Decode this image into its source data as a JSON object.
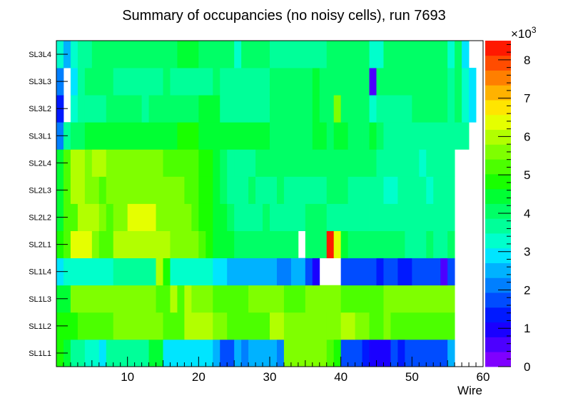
{
  "chart_data": {
    "type": "heatmap",
    "title": "Summary of occupancies (no noisy cells), run 7693",
    "xlabel": "Wire",
    "ylabel": "",
    "x_range": [
      0,
      60
    ],
    "x_ticks": [
      10,
      20,
      30,
      40,
      50,
      60
    ],
    "z_range": [
      0,
      8.5
    ],
    "z_multiplier": "×10",
    "z_multiplier_exp": "3",
    "z_ticks": [
      0,
      1,
      2,
      3,
      4,
      5,
      6,
      7,
      8
    ],
    "layers": [
      "SL1L1",
      "SL1L2",
      "SL1L3",
      "SL1L4",
      "SL2L1",
      "SL2L2",
      "SL2L3",
      "SL2L4",
      "SL3L1",
      "SL3L2",
      "SL3L3",
      "SL3L4"
    ],
    "palette": [
      "#7f00ff",
      "#4c00ff",
      "#1a00ff",
      "#0019ff",
      "#004cff",
      "#007fff",
      "#00b2ff",
      "#00e5ff",
      "#00ffcc",
      "#00ff99",
      "#00ff66",
      "#00ff33",
      "#19ff00",
      "#4cff00",
      "#7fff00",
      "#b2ff00",
      "#e5ff00",
      "#ffe500",
      "#ffb200",
      "#ff7f00",
      "#ff4c00",
      "#ff1900"
    ],
    "rows": [
      {
        "layer": "SL1L1",
        "segments": [
          [
            0,
            1,
            4.7
          ],
          [
            1,
            2,
            4.3
          ],
          [
            2,
            4,
            3.7
          ],
          [
            4,
            6,
            3.4
          ],
          [
            6,
            7,
            2.9
          ],
          [
            7,
            13,
            3.5
          ],
          [
            13,
            15,
            4.4
          ],
          [
            15,
            22,
            2.9
          ],
          [
            22,
            23,
            2.4
          ],
          [
            23,
            25,
            1.9
          ],
          [
            25,
            26,
            2.4
          ],
          [
            26,
            27,
            2.0
          ],
          [
            27,
            31,
            2.5
          ],
          [
            31,
            32,
            2.2
          ],
          [
            32,
            38,
            5.6
          ],
          [
            38,
            39,
            5.4
          ],
          [
            39,
            40,
            4.7
          ],
          [
            40,
            43,
            1.9
          ],
          [
            43,
            44,
            1.5
          ],
          [
            44,
            47,
            1.0
          ],
          [
            47,
            48,
            1.9
          ],
          [
            48,
            49,
            1.5
          ],
          [
            49,
            55,
            1.9
          ],
          [
            55,
            56,
            2.6
          ]
        ]
      },
      {
        "layer": "SL1L2",
        "segments": [
          [
            0,
            3,
            4.9
          ],
          [
            3,
            8,
            5.4
          ],
          [
            8,
            15,
            5.6
          ],
          [
            15,
            18,
            5.4
          ],
          [
            18,
            22,
            5.9
          ],
          [
            22,
            24,
            5.6
          ],
          [
            24,
            28,
            5.2
          ],
          [
            28,
            30,
            5.4
          ],
          [
            30,
            32,
            6.0
          ],
          [
            32,
            38,
            5.6
          ],
          [
            38,
            40,
            5.5
          ],
          [
            40,
            41,
            5.9
          ],
          [
            41,
            42,
            6.1
          ],
          [
            42,
            44,
            5.5
          ],
          [
            44,
            46,
            5.3
          ],
          [
            46,
            47,
            5.5
          ],
          [
            47,
            56,
            5.3
          ]
        ]
      },
      {
        "layer": "SL1L3",
        "segments": [
          [
            0,
            2,
            4.5
          ],
          [
            2,
            14,
            5.5
          ],
          [
            14,
            16,
            5.4
          ],
          [
            16,
            17,
            5.8
          ],
          [
            17,
            18,
            5.4
          ],
          [
            18,
            19,
            5.8
          ],
          [
            19,
            22,
            5.5
          ],
          [
            22,
            27,
            5.1
          ],
          [
            27,
            32,
            5.6
          ],
          [
            32,
            35,
            5.2
          ],
          [
            35,
            40,
            5.6
          ],
          [
            40,
            42,
            5.4
          ],
          [
            42,
            44,
            5.1
          ],
          [
            44,
            46,
            5.4
          ],
          [
            46,
            56,
            5.5
          ]
        ]
      },
      {
        "layer": "SL1L4",
        "segments": [
          [
            0,
            1,
            3.0
          ],
          [
            1,
            8,
            3.3
          ],
          [
            8,
            14,
            3.6
          ],
          [
            14,
            15,
            6.0
          ],
          [
            15,
            16,
            4.8
          ],
          [
            16,
            22,
            3.3
          ],
          [
            22,
            24,
            2.9
          ],
          [
            24,
            31,
            2.4
          ],
          [
            31,
            33,
            2.0
          ],
          [
            33,
            35,
            2.4
          ],
          [
            35,
            36,
            1.9
          ],
          [
            36,
            37,
            0.8
          ],
          [
            40,
            45,
            1.9
          ],
          [
            45,
            46,
            1.5
          ],
          [
            46,
            48,
            1.9
          ],
          [
            48,
            50,
            1.4
          ],
          [
            50,
            54,
            1.9
          ],
          [
            54,
            55,
            0.5
          ],
          [
            55,
            56,
            1.7
          ]
        ]
      },
      {
        "layer": "SL2L1",
        "segments": [
          [
            0,
            1,
            4.7
          ],
          [
            1,
            2,
            5.3
          ],
          [
            2,
            5,
            6.3
          ],
          [
            5,
            6,
            5.6
          ],
          [
            6,
            7,
            5.4
          ],
          [
            7,
            8,
            5.1
          ],
          [
            8,
            16,
            6.0
          ],
          [
            16,
            20,
            5.6
          ],
          [
            20,
            21,
            5.2
          ],
          [
            21,
            22,
            4.9
          ],
          [
            22,
            25,
            4.4
          ],
          [
            25,
            34,
            4.0
          ],
          [
            35,
            38,
            4.0
          ],
          [
            38,
            39,
            8.2
          ],
          [
            39,
            40,
            6.5
          ],
          [
            40,
            41,
            4.4
          ],
          [
            41,
            49,
            4.0
          ],
          [
            49,
            52,
            3.6
          ],
          [
            52,
            53,
            4.0
          ],
          [
            53,
            55,
            3.6
          ],
          [
            55,
            56,
            4.0
          ]
        ]
      },
      {
        "layer": "SL2L2",
        "segments": [
          [
            0,
            1,
            4.6
          ],
          [
            1,
            3,
            5.4
          ],
          [
            3,
            6,
            6.0
          ],
          [
            6,
            7,
            5.7
          ],
          [
            7,
            8,
            5.4
          ],
          [
            8,
            10,
            5.6
          ],
          [
            10,
            14,
            6.2
          ],
          [
            14,
            19,
            5.6
          ],
          [
            19,
            20,
            5.3
          ],
          [
            20,
            22,
            4.9
          ],
          [
            22,
            23,
            4.6
          ],
          [
            23,
            24,
            4.3
          ],
          [
            24,
            25,
            4.0
          ],
          [
            25,
            29,
            3.7
          ],
          [
            29,
            30,
            4.0
          ],
          [
            30,
            35,
            3.7
          ],
          [
            35,
            38,
            4.0
          ],
          [
            38,
            44,
            3.8
          ],
          [
            44,
            56,
            3.5
          ]
        ]
      },
      {
        "layer": "SL2L3",
        "segments": [
          [
            0,
            1,
            4.6
          ],
          [
            1,
            2,
            5.4
          ],
          [
            2,
            4,
            5.8
          ],
          [
            4,
            6,
            5.5
          ],
          [
            6,
            7,
            5.1
          ],
          [
            7,
            8,
            5.5
          ],
          [
            8,
            18,
            5.6
          ],
          [
            18,
            20,
            5.2
          ],
          [
            20,
            22,
            4.9
          ],
          [
            22,
            23,
            4.6
          ],
          [
            23,
            24,
            4.2
          ],
          [
            24,
            27,
            3.8
          ],
          [
            27,
            28,
            4.2
          ],
          [
            28,
            31,
            3.8
          ],
          [
            31,
            32,
            4.2
          ],
          [
            32,
            38,
            3.7
          ],
          [
            38,
            41,
            4.0
          ],
          [
            41,
            46,
            3.7
          ],
          [
            46,
            48,
            3.4
          ],
          [
            48,
            52,
            3.7
          ],
          [
            52,
            53,
            3.4
          ],
          [
            53,
            56,
            3.6
          ]
        ]
      },
      {
        "layer": "SL2L4",
        "segments": [
          [
            0,
            1,
            4.5
          ],
          [
            1,
            2,
            5.4
          ],
          [
            2,
            4,
            6.1
          ],
          [
            4,
            5,
            5.6
          ],
          [
            5,
            7,
            5.8
          ],
          [
            7,
            10,
            5.5
          ],
          [
            10,
            15,
            5.7
          ],
          [
            15,
            20,
            5.3
          ],
          [
            20,
            22,
            4.9
          ],
          [
            22,
            23,
            4.6
          ],
          [
            23,
            24,
            4.2
          ],
          [
            24,
            25,
            3.8
          ],
          [
            25,
            28,
            3.5
          ],
          [
            28,
            40,
            3.9
          ],
          [
            40,
            45,
            4.0
          ],
          [
            45,
            51,
            3.8
          ],
          [
            51,
            52,
            3.4
          ],
          [
            52,
            56,
            3.7
          ]
        ]
      },
      {
        "layer": "SL3L1",
        "segments": [
          [
            0,
            1,
            2.2
          ],
          [
            1,
            2,
            3.6
          ],
          [
            2,
            4,
            4.0
          ],
          [
            4,
            15,
            4.3
          ],
          [
            15,
            16,
            4.6
          ],
          [
            16,
            17,
            4.3
          ],
          [
            17,
            20,
            5.0
          ],
          [
            20,
            29,
            4.3
          ],
          [
            29,
            30,
            4.6
          ],
          [
            30,
            36,
            4.2
          ],
          [
            36,
            38,
            4.6
          ],
          [
            38,
            39,
            4.2
          ],
          [
            39,
            41,
            4.5
          ],
          [
            41,
            43,
            4.2
          ],
          [
            43,
            44,
            3.9
          ],
          [
            44,
            45,
            4.5
          ],
          [
            45,
            46,
            4.1
          ],
          [
            46,
            58,
            3.8
          ]
        ]
      },
      {
        "layer": "SL3L2",
        "segments": [
          [
            0,
            1,
            1.4
          ],
          [
            2,
            3,
            3.1
          ],
          [
            3,
            4,
            3.6
          ],
          [
            4,
            7,
            3.8
          ],
          [
            7,
            12,
            4.1
          ],
          [
            12,
            13,
            3.8
          ],
          [
            13,
            20,
            4.1
          ],
          [
            20,
            23,
            4.3
          ],
          [
            23,
            27,
            3.8
          ],
          [
            27,
            30,
            3.7
          ],
          [
            30,
            33,
            3.9
          ],
          [
            33,
            36,
            4.2
          ],
          [
            36,
            37,
            4.5
          ],
          [
            37,
            39,
            4.2
          ],
          [
            39,
            40,
            5.7
          ],
          [
            40,
            44,
            4.2
          ],
          [
            44,
            45,
            3.1
          ],
          [
            45,
            50,
            3.8
          ],
          [
            50,
            52,
            4.0
          ],
          [
            52,
            55,
            3.9
          ],
          [
            55,
            56,
            3.6
          ],
          [
            56,
            57,
            3.9
          ],
          [
            57,
            58,
            3.1
          ],
          [
            58,
            59,
            2.9
          ]
        ]
      },
      {
        "layer": "SL3L3",
        "segments": [
          [
            0,
            1,
            2.0
          ],
          [
            2,
            3,
            2.9
          ],
          [
            3,
            4,
            3.5
          ],
          [
            4,
            8,
            3.9
          ],
          [
            8,
            15,
            3.6
          ],
          [
            15,
            16,
            3.9
          ],
          [
            16,
            22,
            3.7
          ],
          [
            22,
            23,
            3.9
          ],
          [
            23,
            27,
            3.5
          ],
          [
            27,
            30,
            3.7
          ],
          [
            30,
            36,
            4.0
          ],
          [
            36,
            37,
            4.3
          ],
          [
            37,
            40,
            4.0
          ],
          [
            40,
            44,
            4.2
          ],
          [
            44,
            45,
            0.4
          ],
          [
            45,
            55,
            3.9
          ],
          [
            55,
            56,
            3.5
          ],
          [
            56,
            57,
            3.9
          ],
          [
            57,
            58,
            3.4
          ],
          [
            58,
            59,
            2.9
          ]
        ]
      },
      {
        "layer": "SL3L4",
        "segments": [
          [
            0,
            1,
            3.2
          ],
          [
            1,
            2,
            2.6
          ],
          [
            2,
            3,
            3.3
          ],
          [
            3,
            5,
            3.8
          ],
          [
            5,
            17,
            3.9
          ],
          [
            17,
            20,
            4.3
          ],
          [
            20,
            25,
            4.0
          ],
          [
            25,
            26,
            3.4
          ],
          [
            26,
            30,
            3.9
          ],
          [
            30,
            38,
            3.7
          ],
          [
            38,
            40,
            4.2
          ],
          [
            40,
            44,
            3.9
          ],
          [
            44,
            45,
            3.3
          ],
          [
            45,
            46,
            3.1
          ],
          [
            46,
            55,
            3.9
          ],
          [
            55,
            56,
            3.4
          ],
          [
            56,
            57,
            3.9
          ],
          [
            57,
            58,
            2.8
          ]
        ]
      }
    ]
  }
}
